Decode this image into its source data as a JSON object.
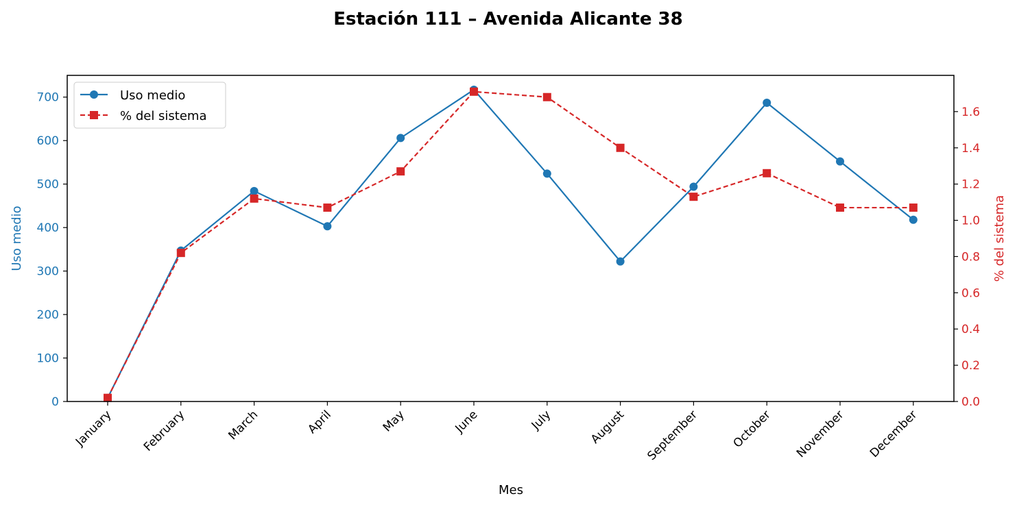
{
  "chart_data": {
    "type": "line",
    "title": "Estación 111 – Avenida Alicante 38",
    "xlabel": "Mes",
    "ylabel_left": "Uso medio",
    "ylabel_right": "% del sistema",
    "categories": [
      "January",
      "February",
      "March",
      "April",
      "May",
      "June",
      "July",
      "August",
      "September",
      "October",
      "November",
      "December"
    ],
    "ylim_left": [
      0,
      750
    ],
    "yticks_left": [
      0,
      100,
      200,
      300,
      400,
      500,
      600,
      700
    ],
    "ylim_right": [
      0,
      1.8
    ],
    "yticks_right": [
      0.0,
      0.2,
      0.4,
      0.6,
      0.8,
      1.0,
      1.2,
      1.4,
      1.6
    ],
    "series": [
      {
        "name": "Uso medio",
        "axis": "left",
        "color": "#1f77b4",
        "marker": "circle",
        "line_style": "solid",
        "values": [
          8,
          347,
          484,
          403,
          606,
          717,
          524,
          322,
          494,
          687,
          552,
          418
        ]
      },
      {
        "name": "% del sistema",
        "axis": "right",
        "color": "#d62728",
        "marker": "square",
        "line_style": "dashed",
        "values": [
          0.02,
          0.82,
          1.12,
          1.07,
          1.27,
          1.71,
          1.68,
          1.4,
          1.13,
          1.26,
          1.07,
          1.07
        ]
      }
    ],
    "legend_position": "top-left",
    "grid": false
  }
}
